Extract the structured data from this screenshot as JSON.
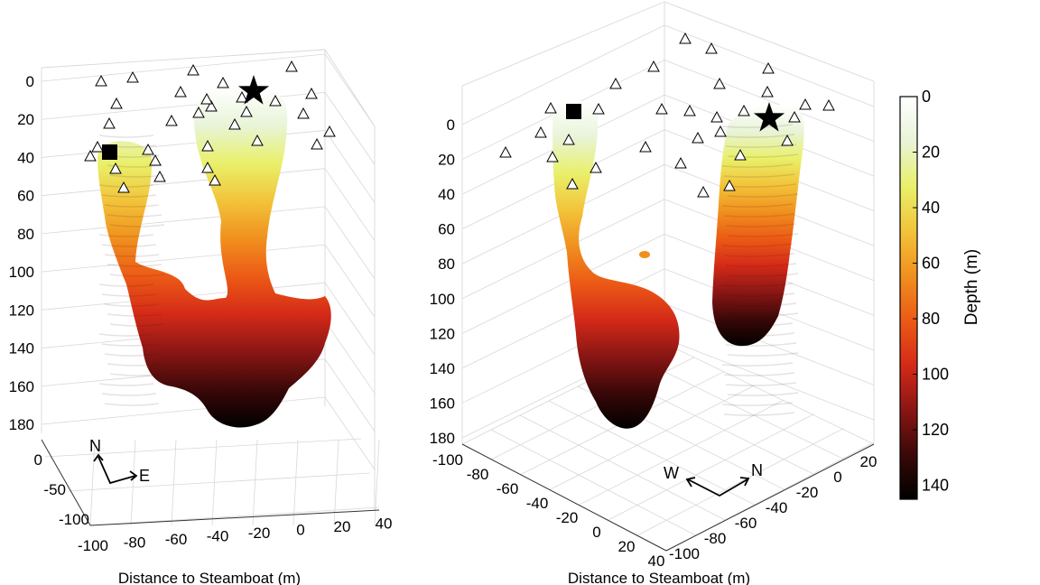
{
  "colors": {
    "colormap": [
      "#ffffff",
      "#e8f4d8",
      "#e9f06a",
      "#f2c43a",
      "#f0901e",
      "#ec5a16",
      "#d42a18",
      "#8a1614",
      "#3a0808",
      "#000000"
    ],
    "grid": "#d8d8d8",
    "marker": "#000000"
  },
  "chart_data": [
    {
      "type": "surface3d",
      "panel": "left",
      "icon_names": [
        "triangle-station-icon",
        "star-vent-icon",
        "square-vent-icon",
        "north-east-arrow-icon"
      ],
      "z_axis": {
        "label": "",
        "ticks": [
          "0",
          "20",
          "40",
          "60",
          "80",
          "100",
          "120",
          "140",
          "160",
          "180"
        ],
        "range": [
          0,
          180
        ],
        "reversed": true
      },
      "y_axis": {
        "ticks": [
          "0",
          "-50",
          "-100"
        ],
        "range": [
          -100,
          0
        ]
      },
      "x_axis": {
        "label": "Distance to Steamboat (m)",
        "ticks": [
          "-100",
          "-80",
          "-60",
          "-40",
          "-20",
          "0",
          "20",
          "40"
        ],
        "range": [
          -100,
          40
        ]
      },
      "orientation": {
        "north": "N",
        "east": "E"
      },
      "grid": true
    },
    {
      "type": "surface3d",
      "panel": "right",
      "icon_names": [
        "triangle-station-icon",
        "star-vent-icon",
        "square-vent-icon",
        "west-north-arrow-icon"
      ],
      "z_axis": {
        "label": "",
        "ticks": [
          "0",
          "20",
          "40",
          "60",
          "80",
          "100",
          "120",
          "140",
          "160",
          "180"
        ],
        "range": [
          0,
          180
        ],
        "reversed": true
      },
      "x_axis": {
        "label": "Distance to Steamboat (m)",
        "ticks": [
          "-100",
          "-80",
          "-60",
          "-40",
          "-20",
          "0",
          "20",
          "40"
        ],
        "range": [
          -100,
          40
        ]
      },
      "y_axis": {
        "ticks": [
          "20",
          "0",
          "-20",
          "-40",
          "-60",
          "-80",
          "-100"
        ],
        "range": [
          -100,
          20
        ]
      },
      "orientation": {
        "west": "W",
        "north": "N"
      },
      "grid": true
    }
  ],
  "colorbar": {
    "label": "Depth (m)",
    "ticks": [
      "0",
      "20",
      "40",
      "60",
      "80",
      "100",
      "120",
      "140"
    ],
    "range": [
      0,
      145
    ]
  }
}
